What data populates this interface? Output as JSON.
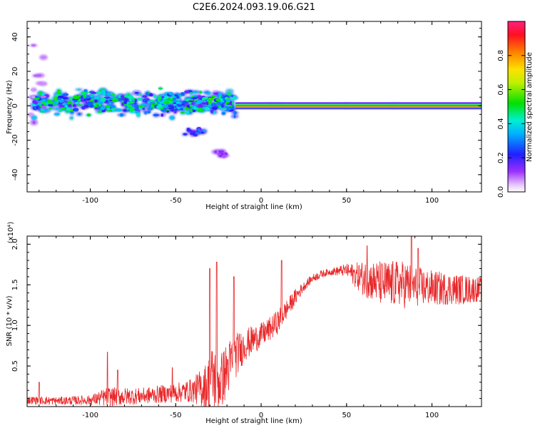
{
  "title": "C2E6.2024.093.19.06.G21",
  "chart_data": [
    {
      "type": "heatmap",
      "xlabel": "Height of straight line (km)",
      "ylabel": "Frequency (Hz)",
      "xlim": [
        -137,
        129
      ],
      "ylim": [
        -50,
        49
      ],
      "xticks": [
        -100,
        -50,
        0,
        50,
        100
      ],
      "yticks": [
        -40,
        -20,
        0,
        20,
        40
      ],
      "grid": false,
      "colorbar": {
        "label": "Normalized spectral amplitude",
        "range": [
          0.0,
          1.0
        ],
        "ticks": [
          0.0,
          0.2,
          0.4,
          0.6,
          0.8
        ],
        "colormap": "rainbow (white - purple - blue - cyan - green - yellow - orange - red)"
      },
      "features": [
        {
          "x_range": [
            -133,
            -15
          ],
          "freq_center": 2,
          "freq_spread": 10,
          "amplitude": 0.25,
          "note": "broadband scattered signal"
        },
        {
          "x_range": [
            -45,
            -33
          ],
          "freq_center": -15,
          "freq_spread": 3,
          "amplitude": 0.15
        },
        {
          "x_range": [
            -28,
            -20
          ],
          "freq_center": -28,
          "freq_spread": 4,
          "amplitude": 0.05
        },
        {
          "x_range": [
            -135,
            -127
          ],
          "freq_center": 10,
          "freq_spread": 35,
          "amplitude": 0.03,
          "note": "faint vertical streak"
        },
        {
          "x_range": [
            -15,
            129
          ],
          "freq_center": 0,
          "freq_spread": 1,
          "amplitude": 0.95,
          "note": "narrow carrier line"
        }
      ]
    },
    {
      "type": "line",
      "xlabel": "Height of straight line (km)",
      "ylabel": "SNR (10 * v/v)",
      "y_multiplier": "(x10⁴)",
      "xlim": [
        -137,
        129
      ],
      "ylim": [
        0,
        2.1
      ],
      "xticks": [
        -100,
        -50,
        0,
        50,
        100
      ],
      "yticks": [
        0.5,
        1.0,
        1.5,
        2.0
      ],
      "ytick_labels": [
        "0.5",
        "1.0",
        "1.5",
        "2.0"
      ],
      "grid": false,
      "series": [
        {
          "color": "#e8282a",
          "envelope": {
            "x": [
              -137,
              -120,
              -100,
              -90,
              -70,
              -50,
              -40,
              -32,
              -28,
              -24,
              -20,
              -16,
              -10,
              -5,
              0,
              5,
              10,
              15,
              20,
              25,
              30,
              35,
              40,
              50,
              55,
              60,
              65,
              70,
              75,
              80,
              85,
              90,
              100,
              110,
              120,
              129
            ],
            "mean": [
              0.08,
              0.07,
              0.08,
              0.12,
              0.13,
              0.17,
              0.2,
              0.25,
              0.35,
              0.3,
              0.45,
              0.6,
              0.75,
              0.82,
              0.88,
              0.95,
              1.05,
              1.2,
              1.35,
              1.48,
              1.58,
              1.63,
              1.66,
              1.68,
              1.62,
              1.58,
              1.55,
              1.52,
              1.5,
              1.52,
              1.5,
              1.48,
              1.46,
              1.45,
              1.44,
              1.45
            ],
            "jitter": [
              0.05,
              0.05,
              0.06,
              0.12,
              0.1,
              0.12,
              0.15,
              0.3,
              0.45,
              0.35,
              0.35,
              0.3,
              0.2,
              0.18,
              0.15,
              0.15,
              0.15,
              0.12,
              0.1,
              0.06,
              0.05,
              0.05,
              0.04,
              0.08,
              0.15,
              0.22,
              0.25,
              0.28,
              0.3,
              0.28,
              0.3,
              0.25,
              0.22,
              0.2,
              0.18,
              0.15
            ]
          },
          "peaks": [
            [
              -130,
              0.3
            ],
            [
              -90,
              0.67
            ],
            [
              -84,
              0.45
            ],
            [
              -52,
              0.48
            ],
            [
              -30,
              1.7
            ],
            [
              -26,
              1.78
            ],
            [
              -16,
              1.6
            ],
            [
              12,
              1.8
            ],
            [
              62,
              1.98
            ],
            [
              88,
              2.1
            ],
            [
              92,
              1.95
            ]
          ]
        }
      ]
    }
  ]
}
